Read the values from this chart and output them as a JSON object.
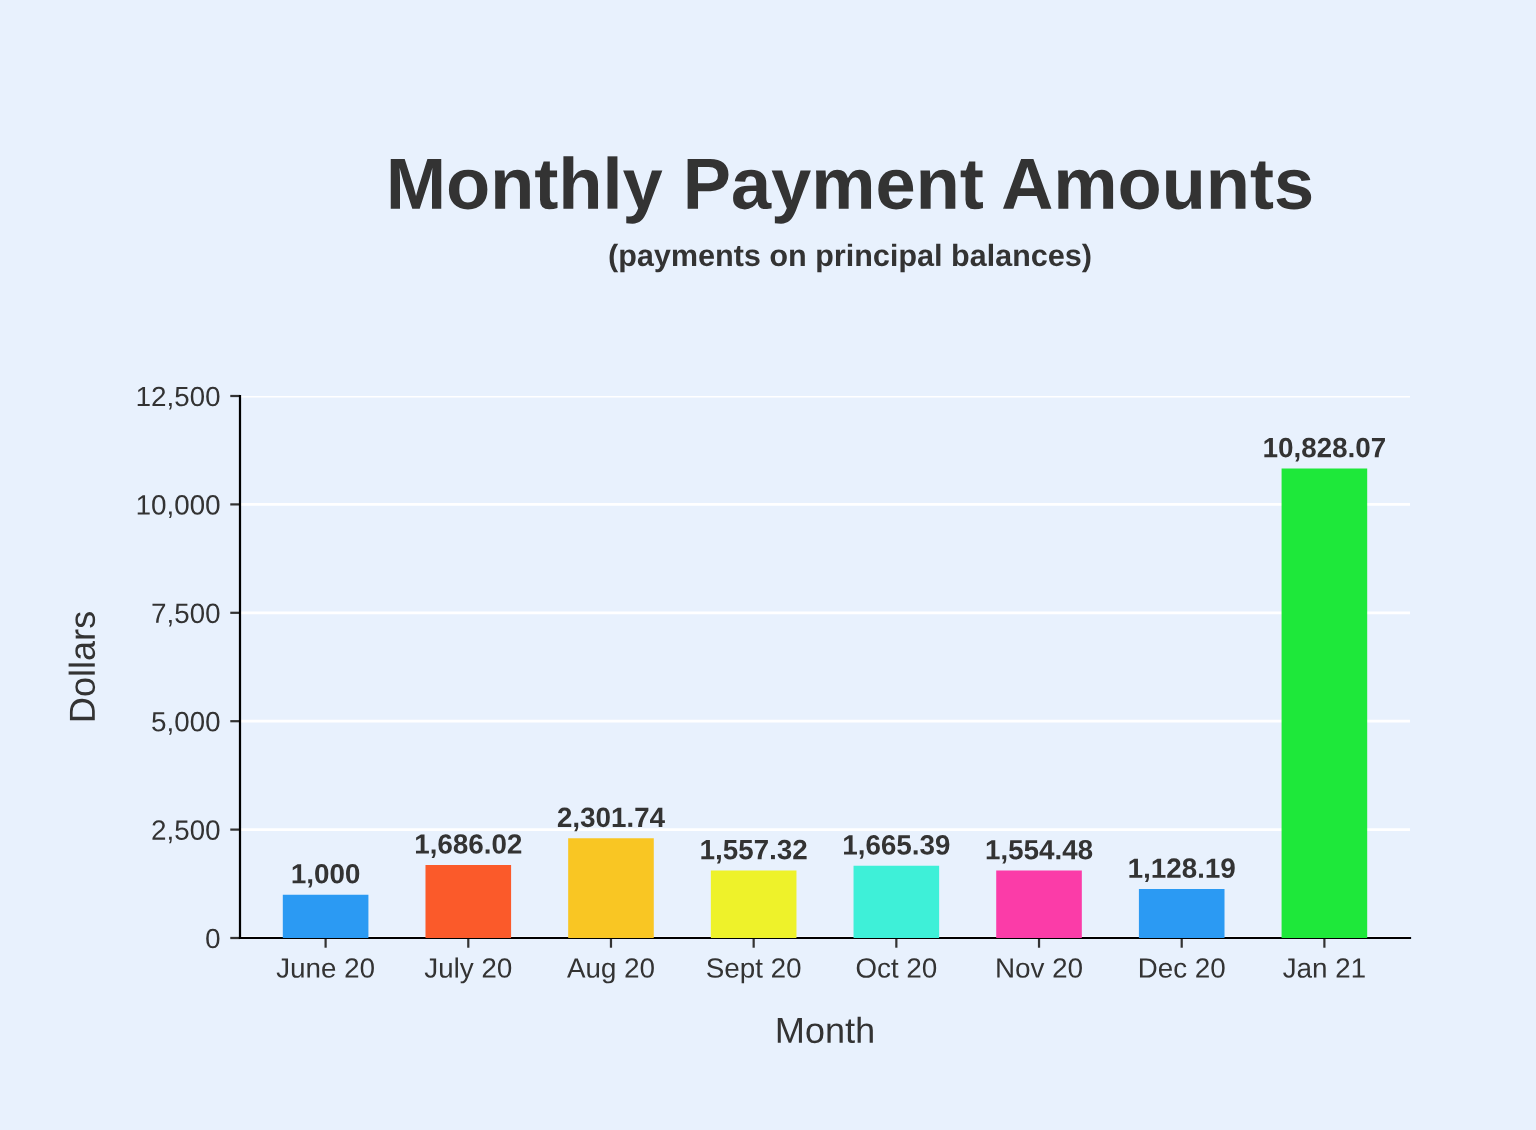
{
  "chart_data": {
    "type": "bar",
    "title": "Monthly Payment Amounts",
    "subtitle": "(payments on principal balances)",
    "xlabel": "Month",
    "ylabel": "Dollars",
    "categories": [
      "June 20",
      "July 20",
      "Aug 20",
      "Sept 20",
      "Oct 20",
      "Nov 20",
      "Dec 20",
      "Jan 21"
    ],
    "values": [
      1000,
      1686.02,
      2301.74,
      1557.32,
      1665.39,
      1554.48,
      1128.19,
      10828.07
    ],
    "value_labels": [
      "1,000",
      "1,686.02",
      "2,301.74",
      "1,557.32",
      "1,665.39",
      "1,554.48",
      "1,128.19",
      "10,828.07"
    ],
    "colors": [
      "#2b9af3",
      "#fb5a2a",
      "#f9c623",
      "#eef22a",
      "#3ef0d8",
      "#fb3ca8",
      "#2b9af3",
      "#1ee83a"
    ],
    "ylim": [
      0,
      12500
    ],
    "yticks": [
      {
        "value": 0,
        "label": "0"
      },
      {
        "value": 2500,
        "label": "2,500"
      },
      {
        "value": 5000,
        "label": "5,000"
      },
      {
        "value": 7500,
        "label": "7,500"
      },
      {
        "value": 10000,
        "label": "10,000"
      },
      {
        "value": 12500,
        "label": "12,500"
      }
    ],
    "grid": "y"
  }
}
